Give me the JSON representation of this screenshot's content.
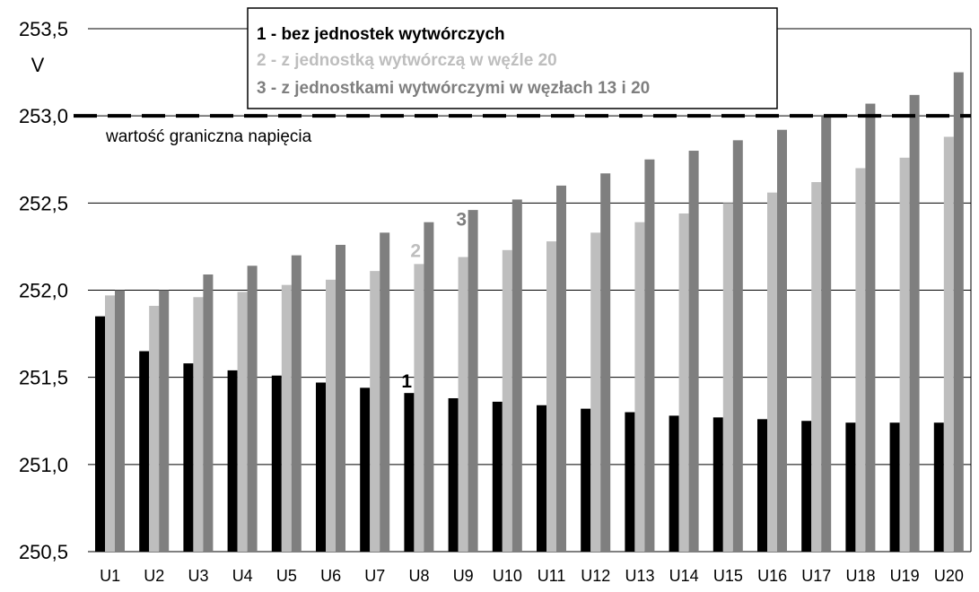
{
  "chart_data": {
    "type": "bar",
    "categories": [
      "U1",
      "U2",
      "U3",
      "U4",
      "U5",
      "U6",
      "U7",
      "U8",
      "U9",
      "U10",
      "U11",
      "U12",
      "U13",
      "U14",
      "U15",
      "U16",
      "U17",
      "U18",
      "U19",
      "U20"
    ],
    "series": [
      {
        "name": "1 - bez jednostek wytwórczych",
        "short": "1",
        "color": "#000000",
        "values": [
          251.85,
          251.65,
          251.58,
          251.54,
          251.51,
          251.47,
          251.44,
          251.41,
          251.38,
          251.36,
          251.34,
          251.32,
          251.3,
          251.28,
          251.27,
          251.26,
          251.25,
          251.24,
          251.24,
          251.24
        ]
      },
      {
        "name": "2 - z jednostką wytwórczą w węźle 20",
        "short": "2",
        "color": "#bebebe",
        "values": [
          251.97,
          251.91,
          251.96,
          251.99,
          252.03,
          252.06,
          252.11,
          252.15,
          252.19,
          252.23,
          252.28,
          252.33,
          252.39,
          252.44,
          252.5,
          252.56,
          252.62,
          252.7,
          252.76,
          252.88
        ]
      },
      {
        "name": "3 - z jednostkami wytwórczymi w węzłach 13 i 20",
        "short": "3",
        "color": "#7f7f7f",
        "values": [
          252.0,
          252.0,
          252.09,
          252.14,
          252.2,
          252.26,
          252.33,
          252.39,
          252.46,
          252.52,
          252.6,
          252.67,
          252.75,
          252.8,
          252.86,
          252.92,
          253.0,
          253.07,
          253.12,
          253.25
        ]
      }
    ],
    "ylim": [
      250.5,
      253.5
    ],
    "yticks": [
      "250,5",
      "251,0",
      "251,5",
      "252,0",
      "252,5",
      "253,0",
      "253,5"
    ],
    "ylabel": "V",
    "grid": true,
    "legend_position": "top-center",
    "threshold": {
      "value": 253.0,
      "label": "wartość graniczna napięcia"
    }
  }
}
